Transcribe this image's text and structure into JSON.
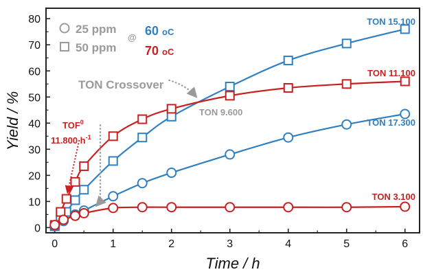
{
  "chart_data": {
    "type": "scatter",
    "xlabel": "Time / h",
    "ylabel": "Yield / %",
    "xlim": [
      -0.15,
      6.25
    ],
    "ylim": [
      -2,
      84
    ],
    "x_ticks": [
      0,
      1,
      2,
      3,
      4,
      5,
      6
    ],
    "y_ticks": [
      0,
      10,
      20,
      30,
      40,
      50,
      60,
      70,
      80
    ],
    "grid": false,
    "legend": {
      "placement": "top-left",
      "entries": [
        {
          "marker": "circle",
          "label": "25 ppm"
        },
        {
          "marker": "square",
          "label": "50 ppm"
        }
      ],
      "at": "@",
      "temps": [
        {
          "value": "60",
          "unit": "oC",
          "color": "#2f7fc1"
        },
        {
          "value": "70",
          "unit": "oC",
          "color": "#c8201f"
        }
      ]
    },
    "colors": {
      "blue": "#2f7fc1",
      "red": "#c8201f",
      "gray": "#9a9a9a"
    },
    "series": [
      {
        "temp": "60",
        "conc": "50 ppm",
        "marker": "square",
        "color": "#2f7fc1",
        "x": [
          0,
          0.1,
          0.2,
          0.35,
          0.5,
          1,
          1.5,
          2,
          3,
          4,
          5,
          6
        ],
        "y": [
          0.5,
          3,
          6,
          10.5,
          14.5,
          25.5,
          34.5,
          42.5,
          54,
          64,
          70.5,
          76
        ]
      },
      {
        "temp": "70",
        "conc": "50 ppm",
        "marker": "square",
        "color": "#c8201f",
        "x": [
          0,
          0.1,
          0.2,
          0.35,
          0.5,
          1,
          1.5,
          2,
          3,
          4,
          5,
          6
        ],
        "y": [
          1,
          6,
          11,
          17.5,
          23.5,
          35,
          41.5,
          45.5,
          50.5,
          53.5,
          55,
          56
        ]
      },
      {
        "temp": "60",
        "conc": "25 ppm",
        "marker": "circle",
        "color": "#2f7fc1",
        "x": [
          0,
          0.15,
          0.35,
          0.5,
          1,
          1.5,
          2,
          3,
          4,
          5,
          6
        ],
        "y": [
          0.5,
          2.5,
          5,
          6.5,
          12,
          17,
          21,
          28,
          34.5,
          39.5,
          43.5
        ]
      },
      {
        "temp": "70",
        "conc": "25 ppm",
        "marker": "circle",
        "color": "#c8201f",
        "x": [
          0,
          0.15,
          0.35,
          0.5,
          1,
          1.5,
          2,
          3,
          4,
          5,
          6
        ],
        "y": [
          1,
          3,
          4.5,
          5.5,
          7.5,
          7.8,
          7.8,
          7.8,
          7.8,
          7.8,
          8
        ]
      }
    ],
    "annotations": {
      "ton_blue_50": "TON 15.100",
      "ton_red_50": "TON 11.100",
      "ton_blue_25": "TON 17.300",
      "ton_red_25": "TON 3.100",
      "ton_crossover": "TON Crossover",
      "ton_mid": "TON 9.600",
      "tof_label": "TOF",
      "tof_sup": "0",
      "tof_value": "11.800 h",
      "tof_value_sup": "-1"
    }
  }
}
